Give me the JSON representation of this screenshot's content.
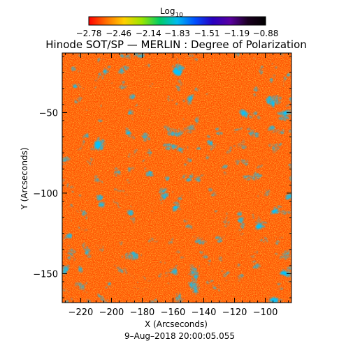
{
  "chart_data": {
    "type": "heatmap",
    "title": "Hinode SOT/SP — MERLIN : Degree of Polarization",
    "xlabel": "X (Arcseconds)",
    "ylabel": "Y (Arcseconds)",
    "date": "9–Aug–2018 20:00:05.055",
    "xlim": [
      -232,
      -83
    ],
    "ylim": [
      -168,
      -13
    ],
    "x_ticks": [
      -220,
      -200,
      -180,
      -160,
      -140,
      -120,
      -100
    ],
    "y_ticks": [
      -50,
      -100,
      -150
    ],
    "x_tick_labels": [
      "−220",
      "−200",
      "−180",
      "−160",
      "−140",
      "−120",
      "−100"
    ],
    "y_tick_labels": [
      "−50",
      "−100",
      "−150"
    ],
    "colorbar": {
      "title": "Log",
      "title_sub": "10",
      "range": [
        -2.78,
        -0.88
      ],
      "tick_values": [
        -2.78,
        -2.46,
        -2.14,
        -1.83,
        -1.51,
        -1.19,
        -0.88
      ],
      "tick_labels": [
        "−2.78",
        "−2.46",
        "−2.14",
        "−1.83",
        "−1.51",
        "−1.19",
        "−0.88"
      ],
      "colormap": [
        "#ff0000",
        "#ff7000",
        "#ffd000",
        "#9ae600",
        "#00cc66",
        "#00bbee",
        "#0050ff",
        "#2800c0",
        "#5a00a0",
        "#1a0020",
        "#000000"
      ]
    },
    "grid": false
  }
}
